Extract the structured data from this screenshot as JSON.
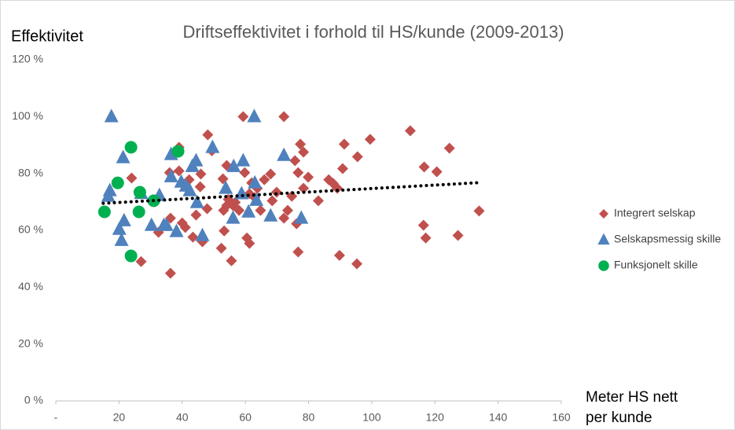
{
  "chart_data": {
    "type": "scatter",
    "title": "Driftseffektivitet i forhold til HS/kunde (2009-2013)",
    "ylabel": "Effektivitet",
    "xlabel": "Meter HS nett per kunde",
    "xlim": [
      0,
      160
    ],
    "xticks": [
      {
        "value": 0,
        "label": "-"
      },
      20,
      40,
      60,
      80,
      100,
      120,
      140,
      160
    ],
    "ylim": [
      0,
      120
    ],
    "yticks": [
      {
        "value": 0,
        "label": "0 %"
      },
      {
        "value": 20,
        "label": "20 %"
      },
      {
        "value": 40,
        "label": "40 %"
      },
      {
        "value": 60,
        "label": "60 %"
      },
      {
        "value": 80,
        "label": "80 %"
      },
      {
        "value": 100,
        "label": "100 %"
      },
      {
        "value": 120,
        "label": "120 %"
      }
    ],
    "grid": false,
    "legend": "right",
    "series": [
      {
        "name": "Integrert selskap",
        "color": "#c0504d",
        "marker": "diamond",
        "x": [
          24,
          27,
          32.5,
          36,
          36.3,
          36.3,
          39,
          39,
          40,
          41,
          42.2,
          43.4,
          44.4,
          45.7,
          45.9,
          46.4,
          47.9,
          48.1,
          49.4,
          52.4,
          52.9,
          53.1,
          53.3,
          54.1,
          54.1,
          54.6,
          55.6,
          56.1,
          56.8,
          58,
          59.3,
          59.8,
          60.5,
          61.3,
          61.3,
          62,
          63,
          63.8,
          64.8,
          66,
          68,
          68.5,
          69.9,
          72.2,
          72.2,
          73.4,
          74.7,
          75.7,
          76.2,
          76.7,
          76.7,
          77.4,
          78.4,
          78.4,
          79.9,
          83.1,
          86.4,
          87.8,
          89.1,
          89.8,
          90.8,
          91.3,
          95.5,
          95.3,
          99.5,
          112.2,
          116.6,
          116.4,
          117.1,
          120.6,
          124.6,
          127.3,
          134
        ],
        "values": [
          78.4,
          49,
          59.3,
          80.3,
          64.3,
          44.9,
          89.2,
          80.9,
          62.6,
          61,
          77.8,
          57.6,
          65.4,
          75.3,
          79.8,
          56,
          67.6,
          93.6,
          88,
          53.7,
          78.1,
          67,
          59.8,
          68.7,
          82.8,
          70.9,
          49.3,
          68.7,
          69.8,
          67,
          100,
          80.3,
          57.3,
          55.4,
          72.9,
          76.7,
          71.5,
          74.8,
          67,
          77.8,
          79.8,
          70.4,
          73.4,
          100,
          64.3,
          67,
          72,
          84.5,
          62.3,
          80.3,
          52.4,
          90.3,
          87.5,
          74.8,
          78.7,
          70.4,
          77.8,
          76.5,
          74.8,
          51.2,
          81.7,
          90.3,
          85.9,
          48.2,
          92,
          95,
          82.3,
          61.8,
          57.3,
          80.6,
          88.9,
          58.2,
          66.8
        ]
      },
      {
        "name": "Selskapsmessig skille",
        "color": "#4f81bd",
        "marker": "triangle",
        "x": [
          17.6,
          17.1,
          16.6,
          21.3,
          20.1,
          21.6,
          20.8,
          27,
          30.3,
          32.8,
          34.2,
          36.5,
          36.5,
          38.2,
          39.7,
          41.2,
          42.4,
          43.2,
          44.4,
          44.7,
          46.4,
          49.6,
          53.8,
          56.1,
          56.3,
          59.3,
          61,
          62.8,
          63,
          63.5,
          68,
          72.2,
          77.7,
          58.8,
          35
        ],
        "values": [
          100,
          74,
          72,
          85.6,
          60.4,
          63.4,
          56.5,
          73,
          61.8,
          72.3,
          61.8,
          86.7,
          78.9,
          59.6,
          77,
          75.6,
          74,
          82.5,
          84.5,
          69.8,
          58.2,
          89.2,
          74.8,
          64.3,
          82.5,
          84.5,
          66.5,
          100,
          76.7,
          70.6,
          65.1,
          86.4,
          64.3,
          72.9,
          61.8
        ]
      },
      {
        "name": "Funksjonelt skille",
        "color": "#00b050",
        "marker": "circle",
        "x": [
          15.4,
          19.6,
          23.8,
          26.6,
          26.3,
          31,
          23.8,
          38.7
        ],
        "values": [
          66.5,
          76.7,
          89.2,
          73.4,
          66.5,
          70.4,
          51,
          87.8
        ]
      }
    ],
    "trendline": {
      "color": "#000000",
      "x": [
        15,
        134.5
      ],
      "values": [
        69.5,
        76.8
      ]
    }
  }
}
